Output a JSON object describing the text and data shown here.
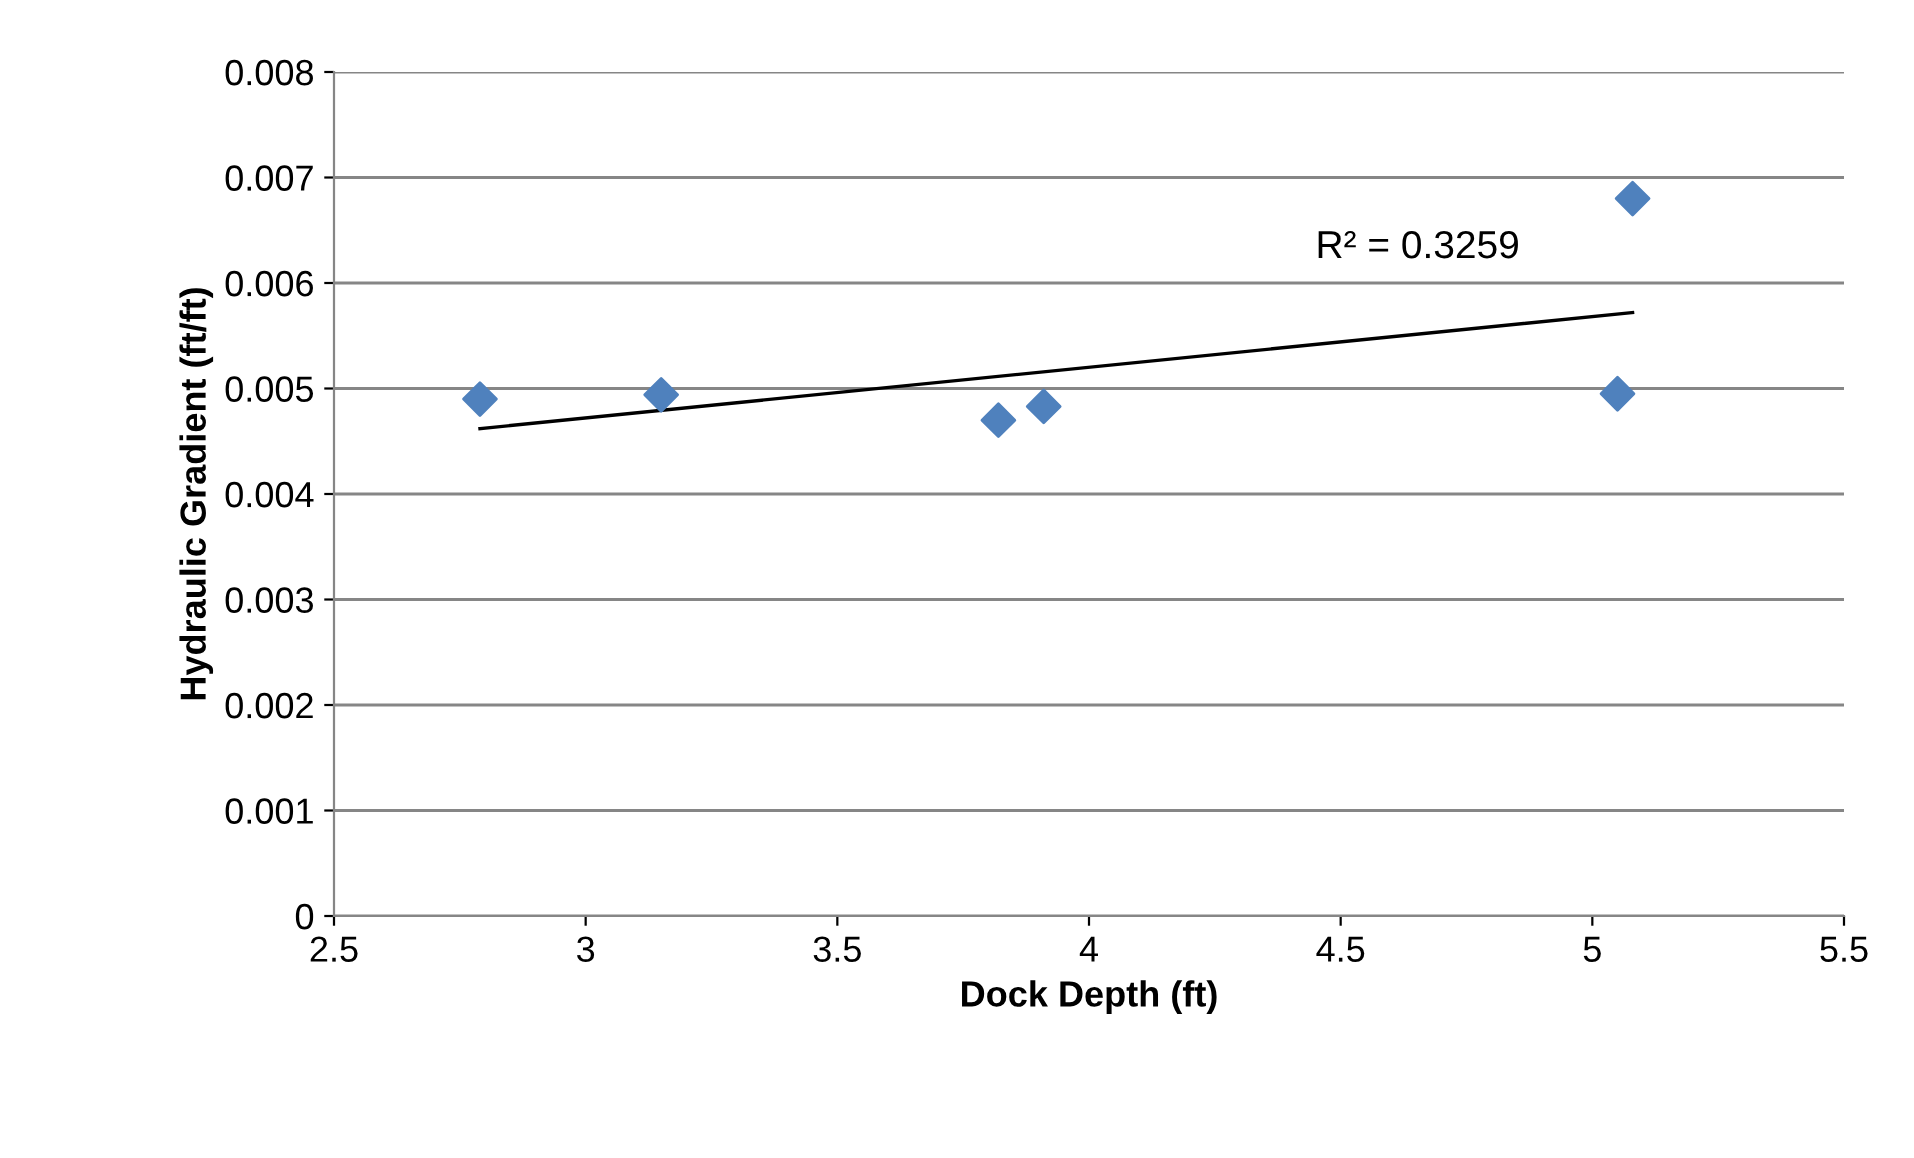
{
  "chart_data": {
    "type": "scatter",
    "xlabel": "Dock Depth (ft)",
    "ylabel": "Hydraulic Gradient (ft/ft)",
    "series": [
      {
        "color": "#4f81bd",
        "marker": "diamond",
        "x": [
          2.79,
          3.15,
          3.82,
          3.91,
          5.05,
          5.08
        ],
        "values": [
          0.0049,
          0.00494,
          0.0047,
          0.00483,
          0.00495,
          0.0068
        ]
      },
      {
        "type": "line",
        "color": "#000000",
        "line_style": "solid",
        "x": [
          2.79,
          5.08
        ],
        "values": [
          0.00462,
          0.00572
        ]
      }
    ],
    "annotations": [
      "R² = 0.3259"
    ],
    "xlim": [
      2.5,
      5.5
    ],
    "xticks": [
      2.5,
      3,
      3.5,
      4,
      4.5,
      5,
      5.5
    ],
    "ylim": [
      0,
      0.008
    ],
    "yticks": [
      0,
      0.001,
      0.002,
      0.003,
      0.004,
      0.005,
      0.006,
      0.007,
      0.008
    ],
    "grid": "y"
  }
}
